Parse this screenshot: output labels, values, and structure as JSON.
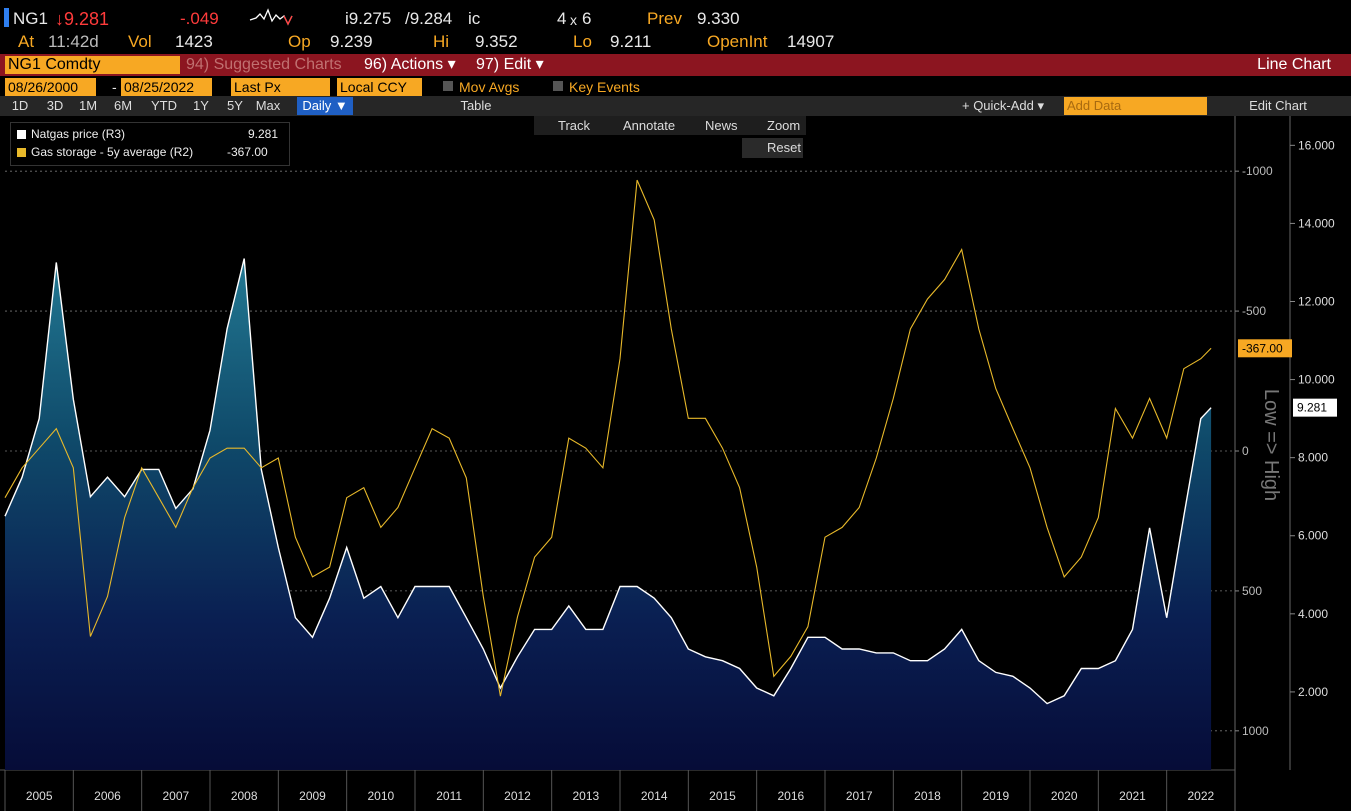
{
  "header": {
    "ticker": "NG1",
    "last": "↓9.281",
    "change": "-.049",
    "bid": "i9.275",
    "ask": "/9.284",
    "ask_flag": "ic",
    "size_a": "4",
    "size_x": "x",
    "size_b": "6",
    "prev_label": "Prev",
    "prev": "9.330",
    "at_label": "At",
    "time": "11:42d",
    "vol_label": "Vol",
    "vol": "1423",
    "op_label": "Op",
    "op": "9.239",
    "hi_label": "Hi",
    "hi": "9.352",
    "lo_label": "Lo",
    "lo": "9.211",
    "oi_label": "OpenInt",
    "oi": "14907"
  },
  "menu": {
    "security": "NG1 Comdty",
    "suggested": "94) Suggested Charts",
    "actions": "96) Actions ▾",
    "edit": "97) Edit ▾",
    "chart_kind": "Line Chart"
  },
  "settings": {
    "start": "08/26/2000",
    "dash": "-",
    "end": "08/25/2022",
    "field": "Last Px",
    "currency": "Local CCY",
    "mov_avgs": "Mov Avgs",
    "key_events": "Key Events"
  },
  "toolbar": {
    "ranges": [
      "1D",
      "3D",
      "1M",
      "6M",
      "YTD",
      "1Y",
      "5Y",
      "Max"
    ],
    "period": "Daily ▼",
    "table": "Table",
    "quick_add": "+ Quick-Add ▾",
    "add_data": "Add Data",
    "edit_chart": "Edit Chart"
  },
  "tools": {
    "track": "Track",
    "annotate": "Annotate",
    "news": "News",
    "zoom": "Zoom",
    "reset": "Reset"
  },
  "chart_data": {
    "type": "line",
    "y2_title": "Low => High",
    "x": [
      2005,
      2005.25,
      2005.5,
      2005.75,
      2006,
      2006.25,
      2006.5,
      2006.75,
      2007,
      2007.25,
      2007.5,
      2007.75,
      2008,
      2008.25,
      2008.5,
      2008.75,
      2009,
      2009.25,
      2009.5,
      2009.75,
      2010,
      2010.25,
      2010.5,
      2010.75,
      2011,
      2011.25,
      2011.5,
      2011.75,
      2012,
      2012.25,
      2012.5,
      2012.75,
      2013,
      2013.25,
      2013.5,
      2013.75,
      2014,
      2014.25,
      2014.5,
      2014.75,
      2015,
      2015.25,
      2015.5,
      2015.75,
      2016,
      2016.25,
      2016.5,
      2016.75,
      2017,
      2017.25,
      2017.5,
      2017.75,
      2018,
      2018.25,
      2018.5,
      2018.75,
      2019,
      2019.25,
      2019.5,
      2019.75,
      2020,
      2020.25,
      2020.5,
      2020.75,
      2021,
      2021.25,
      2021.5,
      2021.75,
      2022,
      2022.25,
      2022.5,
      2022.65
    ],
    "series": [
      {
        "name": "Natgas price (R3)",
        "color": "#ffffff",
        "end_label": "9.281",
        "values": [
          6.5,
          7.5,
          9,
          13,
          9.5,
          7,
          7.5,
          7,
          7.7,
          7.7,
          6.7,
          7.2,
          8.7,
          11.3,
          13.1,
          7.7,
          5.7,
          3.9,
          3.4,
          4.4,
          5.7,
          4.4,
          4.7,
          3.9,
          4.7,
          4.7,
          4.7,
          3.9,
          3.1,
          2.1,
          2.9,
          3.6,
          3.6,
          4.2,
          3.6,
          3.6,
          4.7,
          4.7,
          4.4,
          3.9,
          3.1,
          2.9,
          2.8,
          2.6,
          2.1,
          1.9,
          2.6,
          3.4,
          3.4,
          3.1,
          3.1,
          3.0,
          3.0,
          2.8,
          2.8,
          3.1,
          3.6,
          2.8,
          2.5,
          2.4,
          2.1,
          1.7,
          1.9,
          2.6,
          2.6,
          2.8,
          3.6,
          6.2,
          3.9,
          6.5,
          9.0,
          9.281
        ]
      },
      {
        "name": "Gas storage - 5y average (R2)",
        "color": "#e8b92a",
        "axis": "y2",
        "end_label": "-367.00",
        "values": [
          167,
          60,
          -10,
          -80,
          60,
          663,
          520,
          238,
          60,
          167,
          273,
          131,
          25,
          -10,
          -10,
          60,
          25,
          308,
          450,
          415,
          167,
          131,
          273,
          202,
          60,
          -80,
          -46,
          96,
          520,
          876,
          592,
          379,
          308,
          -46,
          -10,
          60,
          -330,
          -968,
          -826,
          -436,
          -117,
          -117,
          -10,
          131,
          415,
          805,
          734,
          628,
          308,
          273,
          202,
          25,
          -188,
          -436,
          -543,
          -613,
          -720,
          -436,
          -223,
          -80,
          60,
          273,
          450,
          379,
          238,
          -152,
          -46,
          -188,
          -46,
          -294,
          -330,
          -367
        ]
      }
    ],
    "xlim": [
      2005,
      2023
    ],
    "xticks": [
      2005,
      2006,
      2007,
      2008,
      2009,
      2010,
      2011,
      2012,
      2013,
      2014,
      2015,
      2016,
      2017,
      2018,
      2019,
      2020,
      2021,
      2022
    ],
    "ylim": [
      0,
      16.7
    ],
    "yticks": [
      {
        "value": 2,
        "label": "2.000"
      },
      {
        "value": 4,
        "label": "4.000"
      },
      {
        "value": 6,
        "label": "6.000"
      },
      {
        "value": 8,
        "label": "8.000"
      },
      {
        "value": 10,
        "label": "10.000"
      },
      {
        "value": 12,
        "label": "12.000"
      },
      {
        "value": 14,
        "label": "14.000"
      },
      {
        "value": 16,
        "label": "16.000"
      }
    ],
    "y2lim": [
      1140,
      -1190
    ],
    "y2ticks": [
      -1000,
      -500,
      0,
      500,
      1000
    ],
    "grid": true
  }
}
